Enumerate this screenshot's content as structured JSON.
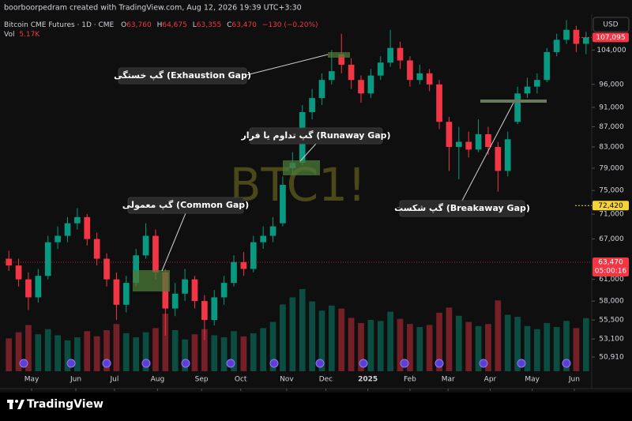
{
  "header": {
    "credit": "boorboorpedram created with TradingView.com, Aug 12, 2026 19:39 UTC+3:30",
    "symbol": "Bitcoin CME Futures · 1D · CME",
    "ohlc": [
      {
        "label": "O",
        "value": "63,760"
      },
      {
        "label": "H",
        "value": "64,675"
      },
      {
        "label": "L",
        "value": "63,355"
      },
      {
        "label": "C",
        "value": "63,470"
      }
    ],
    "change": "−130 (−0.20%)",
    "vol_label": "Vol",
    "vol_value": "5.17K",
    "currency": "USD"
  },
  "watermark": "BTC1!",
  "annotations": [
    {
      "text": "گپ خستگی (Exhaustion Gap)"
    },
    {
      "text": "گپ تداوم یا فرار (Runaway Gap)"
    },
    {
      "text": "گپ معمولی (Common Gap)"
    },
    {
      "text": "گپ شکست (Breakaway Gap)"
    }
  ],
  "footer": {
    "logo": "TradingView"
  },
  "chart_data": {
    "type": "candlestick",
    "log_scale": true,
    "grid": false,
    "up_color": "#089981",
    "down_color": "#f23645",
    "open": [
      64000,
      63000,
      61000,
      58500,
      61500,
      66500,
      67500,
      69500,
      70500,
      67000,
      64000,
      61000,
      57500,
      60500,
      64500,
      67500,
      62000,
      57000,
      59000,
      61000,
      58000,
      55500,
      58500,
      60500,
      63500,
      62500,
      66500,
      67500,
      69500,
      79000,
      80000,
      90000,
      93000,
      97000,
      103000,
      100500,
      97000,
      94000,
      98000,
      101000,
      104500,
      101500,
      97000,
      98500,
      96000,
      88000,
      83000,
      84000,
      82500,
      85500,
      83000,
      78500,
      88000,
      94000,
      95500,
      97000,
      103500,
      106500,
      109000,
      105500
    ],
    "high": [
      65200,
      64000,
      62000,
      62500,
      67500,
      69000,
      70500,
      72000,
      71000,
      68000,
      64800,
      62000,
      61500,
      65500,
      69500,
      68500,
      62500,
      60500,
      62500,
      61500,
      58800,
      59500,
      61500,
      64500,
      65000,
      67500,
      69000,
      70500,
      77500,
      82000,
      91500,
      95000,
      98500,
      104000,
      108000,
      102000,
      98000,
      99500,
      102500,
      109000,
      106000,
      102500,
      100500,
      99500,
      97000,
      89000,
      87000,
      86000,
      88500,
      87000,
      84000,
      86000,
      95500,
      97500,
      98500,
      104500,
      108000,
      111500,
      110000,
      108500
    ],
    "low": [
      62200,
      60000,
      56800,
      57800,
      61000,
      65500,
      66500,
      68500,
      66000,
      63000,
      60000,
      55500,
      56500,
      60000,
      64000,
      61000,
      53500,
      56000,
      58000,
      57000,
      53000,
      54800,
      57500,
      60000,
      61500,
      62000,
      65500,
      66500,
      69000,
      78000,
      79500,
      88500,
      91500,
      96000,
      98500,
      95000,
      92000,
      93000,
      97000,
      100000,
      99500,
      95500,
      96000,
      94500,
      86500,
      78500,
      77000,
      81000,
      82000,
      81500,
      74800,
      77500,
      87500,
      93000,
      94000,
      96500,
      102500,
      105500,
      103500,
      103000
    ],
    "close": [
      63000,
      61000,
      58500,
      61500,
      66500,
      67500,
      69500,
      70500,
      67000,
      64000,
      61000,
      57500,
      60500,
      64500,
      67500,
      62000,
      57000,
      59000,
      61000,
      58000,
      55500,
      58500,
      60500,
      63500,
      62500,
      66500,
      67500,
      69000,
      76000,
      80000,
      90000,
      93000,
      97000,
      99000,
      100500,
      97000,
      94000,
      98000,
      101000,
      104500,
      101500,
      97000,
      98500,
      96000,
      88000,
      83000,
      84000,
      82500,
      85500,
      83000,
      78500,
      84500,
      94000,
      95500,
      97000,
      103500,
      106500,
      109000,
      105500,
      107095
    ],
    "volume": [
      3.2,
      3.8,
      4.5,
      3.6,
      4.1,
      3.5,
      3.0,
      3.3,
      3.9,
      3.4,
      4.0,
      4.6,
      3.7,
      3.3,
      3.8,
      4.2,
      5.6,
      4.0,
      3.1,
      3.6,
      4.1,
      3.5,
      3.3,
      3.9,
      3.4,
      3.7,
      4.2,
      4.8,
      6.5,
      7.2,
      8.0,
      6.8,
      5.9,
      6.4,
      6.1,
      5.2,
      4.7,
      5.0,
      4.9,
      5.8,
      5.1,
      4.6,
      4.3,
      4.5,
      5.7,
      6.2,
      5.4,
      4.8,
      4.4,
      4.6,
      6.9,
      5.5,
      5.3,
      4.4,
      4.1,
      4.7,
      4.3,
      4.9,
      4.2,
      5.17
    ],
    "vlim": [
      0,
      10
    ],
    "xlim": [
      -0.5,
      59.5
    ],
    "xticks": [
      {
        "value": 2.33,
        "label": "May"
      },
      {
        "value": 6.85,
        "label": "Jun"
      },
      {
        "value": 10.8,
        "label": "Jul"
      },
      {
        "value": 15.2,
        "label": "Aug"
      },
      {
        "value": 19.7,
        "label": "Sep"
      },
      {
        "value": 23.7,
        "label": "Oct"
      },
      {
        "value": 28.4,
        "label": "Nov"
      },
      {
        "value": 32.4,
        "label": "Dec"
      },
      {
        "value": 36.7,
        "label": "2025"
      },
      {
        "value": 41.0,
        "label": "Feb"
      },
      {
        "value": 44.9,
        "label": "Mar"
      },
      {
        "value": 49.2,
        "label": "Apr"
      },
      {
        "value": 53.5,
        "label": "May"
      },
      {
        "value": 57.8,
        "label": "Jun"
      }
    ],
    "ylim": [
      49260,
      112200
    ],
    "yticks": [
      {
        "value": 50910,
        "label": "50,910"
      },
      {
        "value": 53100,
        "label": "53,100"
      },
      {
        "value": 55500,
        "label": "55,500"
      },
      {
        "value": 58000,
        "label": "58,000"
      },
      {
        "value": 61000,
        "label": "61,000"
      },
      {
        "value": 67000,
        "label": "67,000"
      },
      {
        "value": 71000,
        "label": "71,000"
      },
      {
        "value": 75000,
        "label": "75,000"
      },
      {
        "value": 79000,
        "label": "79,000"
      },
      {
        "value": 83000,
        "label": "83,000"
      },
      {
        "value": 87000,
        "label": "87,000"
      },
      {
        "value": 91000,
        "label": "91,000"
      },
      {
        "value": 96000,
        "label": "96,000"
      },
      {
        "value": 104000,
        "label": "104,000"
      }
    ],
    "price_labels": [
      {
        "value": 107095,
        "label": "107,095",
        "color": "#f23645"
      },
      {
        "value": 72420,
        "label": "72,420",
        "color": "#f5d33b"
      },
      {
        "value": 63470,
        "label": "63,470",
        "sub": "05:00:16",
        "color": "#f23645"
      }
    ]
  }
}
